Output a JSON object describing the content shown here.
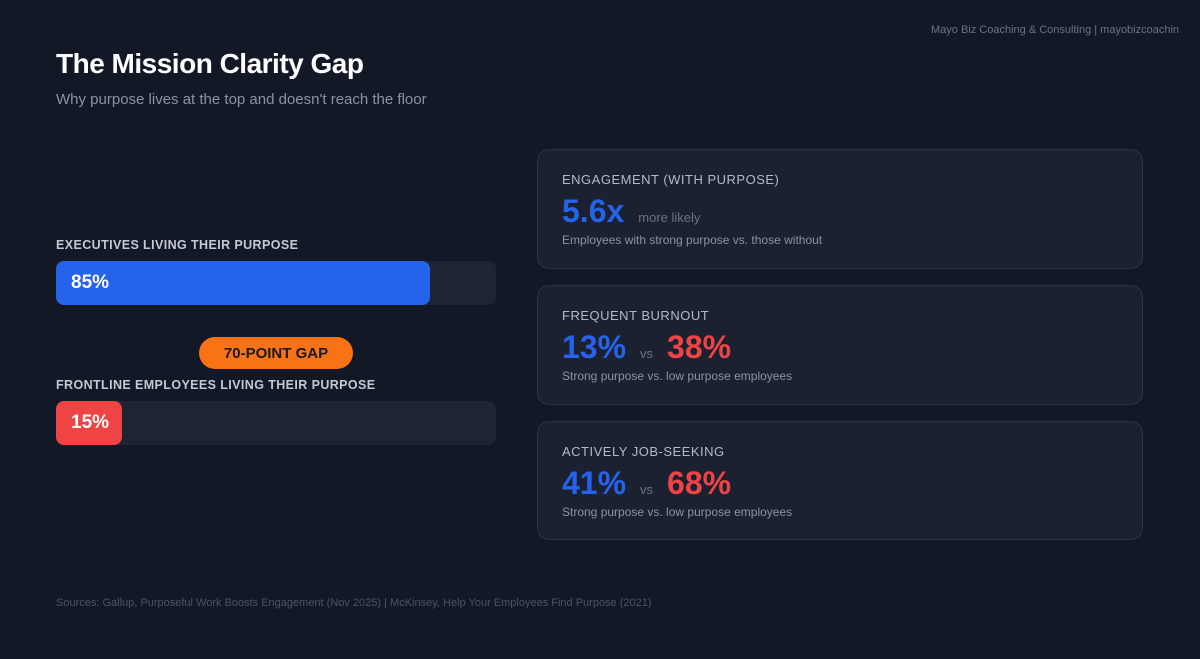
{
  "brand": "Mayo Biz Coaching & Consulting | mayobizcoachin",
  "title": "The Mission Clarity Gap",
  "subtitle": "Why purpose lives at the top and doesn't reach the floor",
  "bars": [
    {
      "label": "EXECUTIVES LIVING THEIR PURPOSE",
      "value_text": "85%",
      "value": 85,
      "color": "#2563eb"
    },
    {
      "label": "FRONTLINE EMPLOYEES LIVING THEIR PURPOSE",
      "value_text": "15%",
      "value": 15,
      "color": "#ef4444"
    }
  ],
  "gap_badge": "70-POINT GAP",
  "cards": [
    {
      "title": "ENGAGEMENT (WITH PURPOSE)",
      "value": "5.6x",
      "suffix": "more likely",
      "desc": "Employees with strong purpose vs. those without"
    },
    {
      "title": "FREQUENT BURNOUT",
      "value_a": "13%",
      "vs": "vs",
      "value_b": "38%",
      "desc": "Strong purpose vs. low purpose employees"
    },
    {
      "title": "ACTIVELY JOB-SEEKING",
      "value_a": "41%",
      "vs": "vs",
      "value_b": "68%",
      "desc": "Strong purpose vs. low purpose employees"
    }
  ],
  "sources": "Sources: Gallup, Purposeful Work Boosts Engagement (Nov 2025) | McKinsey, Help Your Employees Find Purpose (2021)"
}
